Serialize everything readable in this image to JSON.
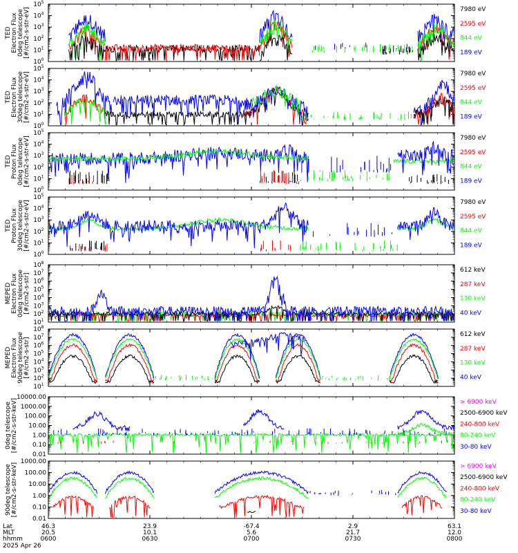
{
  "date_label": "2025 Apr 26",
  "footer_row_labels": [
    "Lat",
    "MLT",
    "hhmm"
  ],
  "colors": {
    "black": "#000000",
    "red": "#ff0000",
    "green": "#00ff00",
    "blue": "#0000ff",
    "magenta": "#ff00ff"
  },
  "chart_data": [
    {
      "type": "line",
      "ylabel": [
        "TED",
        "Electron Flux",
        "0deg telescope",
        "[#/cm2-s-str-eV]"
      ],
      "scale": "log",
      "y_exp_range": [
        0,
        5
      ],
      "tick_format": "exp",
      "legend": [
        {
          "name": "7980 eV",
          "color": "black"
        },
        {
          "name": "2595 eV",
          "color": "red"
        },
        {
          "name": "844 eV",
          "color": "green"
        },
        {
          "name": "189 eV",
          "color": "blue"
        }
      ]
    },
    {
      "type": "line",
      "ylabel": [
        "TED",
        "Electron Flux",
        "30deg telescope",
        "[#/cm2-s-str-eV]"
      ],
      "scale": "log",
      "y_exp_range": [
        0,
        5
      ],
      "tick_format": "exp",
      "legend": [
        {
          "name": "7980 eV",
          "color": "black"
        },
        {
          "name": "2595 eV",
          "color": "red"
        },
        {
          "name": "844 eV",
          "color": "green"
        },
        {
          "name": "189 eV",
          "color": "blue"
        }
      ]
    },
    {
      "type": "line",
      "ylabel": [
        "TED",
        "Proton Flux",
        "0deg telescope",
        "[#/cm2-s-str-eV]"
      ],
      "scale": "log",
      "y_exp_range": [
        0,
        5
      ],
      "tick_format": "exp",
      "legend": [
        {
          "name": "7980 eV",
          "color": "black"
        },
        {
          "name": "2595 eV",
          "color": "red"
        },
        {
          "name": "844 eV",
          "color": "green"
        },
        {
          "name": "189 eV",
          "color": "blue"
        }
      ]
    },
    {
      "type": "line",
      "ylabel": [
        "TED",
        "Proton Flux",
        "30deg telescope",
        "[#/cm2-s-str-eV]"
      ],
      "scale": "log",
      "y_exp_range": [
        0,
        5
      ],
      "tick_format": "exp",
      "legend": [
        {
          "name": "7980 eV",
          "color": "black"
        },
        {
          "name": "2595 eV",
          "color": "red"
        },
        {
          "name": "844 eV",
          "color": "green"
        },
        {
          "name": "189 eV",
          "color": "blue"
        }
      ]
    },
    {
      "type": "line",
      "ylabel": [
        "MEPED",
        "Electron Flux",
        "0deg telescope",
        "[#/cm2-s-str]"
      ],
      "scale": "log",
      "y_exp_range": [
        1,
        8
      ],
      "tick_format": "exp",
      "legend": [
        {
          "name": "612 keV",
          "color": "black"
        },
        {
          "name": "287 keV",
          "color": "red"
        },
        {
          "name": "130 keV",
          "color": "green"
        },
        {
          "name": "40 keV",
          "color": "blue"
        }
      ]
    },
    {
      "type": "line",
      "ylabel": [
        "MEPED",
        "Electron Flux",
        "90deg telescope",
        "[#/cm2-s-str]"
      ],
      "scale": "log",
      "y_exp_range": [
        1,
        8
      ],
      "tick_format": "exp",
      "legend": [
        {
          "name": "612 keV",
          "color": "black"
        },
        {
          "name": "287 keV",
          "color": "red"
        },
        {
          "name": "130 keV",
          "color": "green"
        },
        {
          "name": "40 keV",
          "color": "blue"
        }
      ]
    },
    {
      "type": "line",
      "ylabel": [
        "0deg telescope",
        "[#/cm2-s-str-keV]"
      ],
      "scale": "log",
      "y_exp_range": [
        -2,
        4
      ],
      "tick_format": "dec",
      "legend": [
        {
          "name": "> 6900 keV",
          "color": "magenta"
        },
        {
          "name": "2500-6900 keV",
          "color": "black"
        },
        {
          "name": "240-800 keV",
          "color": "red"
        },
        {
          "name": "80-240 keV",
          "color": "green"
        },
        {
          "name": "30-80 keV",
          "color": "blue"
        }
      ]
    },
    {
      "type": "line",
      "ylabel": [
        "90deg telescope",
        "[#/cm2-s-str-keV]"
      ],
      "scale": "log",
      "y_exp_range": [
        -2,
        3
      ],
      "tick_format": "dec",
      "legend": [
        {
          "name": "> 6900 keV",
          "color": "magenta"
        },
        {
          "name": "2500-6900 keV",
          "color": "black"
        },
        {
          "name": "240-800 keV",
          "color": "red"
        },
        {
          "name": "80-240 keV",
          "color": "green"
        },
        {
          "name": "30-80 keV",
          "color": "blue"
        }
      ]
    }
  ],
  "x_axis": {
    "range": [
      "06:00",
      "08:00"
    ],
    "ticks": [
      {
        "hhmm": "0600",
        "lat": "46.3",
        "mlt": "20.5"
      },
      {
        "hhmm": "0630",
        "lat": "23.9",
        "mlt": "10.1"
      },
      {
        "hhmm": "0700",
        "lat": "-67.4",
        "mlt": "5.6"
      },
      {
        "hhmm": "0730",
        "lat": "2.9",
        "mlt": "21.7"
      },
      {
        "hhmm": "0800",
        "lat": "63.1",
        "mlt": "12.0"
      }
    ]
  }
}
